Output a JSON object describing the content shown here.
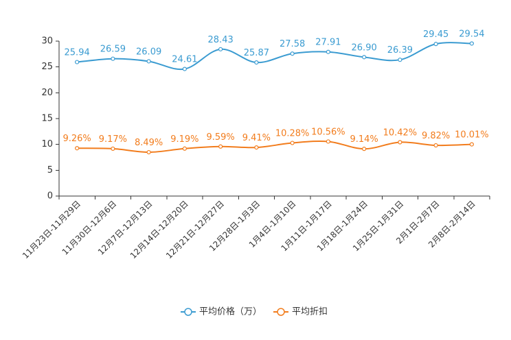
{
  "chart_data": {
    "type": "line",
    "smooth": true,
    "grid": false,
    "categories": [
      "11月23日-11月29日",
      "11月30日-12月6日",
      "12月7日-12月13日",
      "12月14日-12月20日",
      "12月21日-12月27日",
      "12月28日-1月3日",
      "1月4日-1月10日",
      "1月11日-1月17日",
      "1月18日-1月24日",
      "1月25日-1月31日",
      "2月1日-2月7日",
      "2月8日-2月14日"
    ],
    "series": [
      {
        "name": "平均价格（万）",
        "color": "#3a9bd1",
        "values": [
          25.94,
          26.59,
          26.09,
          24.61,
          28.43,
          25.87,
          27.58,
          27.91,
          26.9,
          26.39,
          29.45,
          29.54
        ],
        "labels": [
          "25.94",
          "26.59",
          "26.09",
          "24.61",
          "28.43",
          "25.87",
          "27.58",
          "27.91",
          "26.90",
          "26.39",
          "29.45",
          "29.54"
        ]
      },
      {
        "name": "平均折扣",
        "color": "#f27c1c",
        "values": [
          9.26,
          9.17,
          8.49,
          9.19,
          9.59,
          9.41,
          10.28,
          10.56,
          9.14,
          10.42,
          9.82,
          10.01
        ],
        "labels": [
          "9.26%",
          "9.17%",
          "8.49%",
          "9.19%",
          "9.59%",
          "9.41%",
          "10.28%",
          "10.56%",
          "9.14%",
          "10.42%",
          "9.82%",
          "10.01%"
        ]
      }
    ],
    "ylim": [
      0,
      30
    ],
    "yticks": [
      0,
      5,
      10,
      15,
      20,
      25,
      30
    ]
  }
}
